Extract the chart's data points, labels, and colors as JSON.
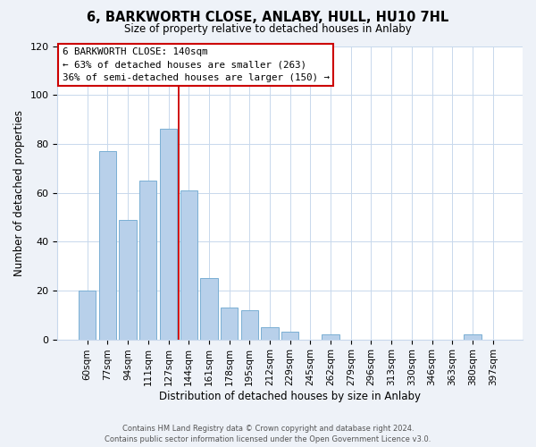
{
  "title": "6, BARKWORTH CLOSE, ANLABY, HULL, HU10 7HL",
  "subtitle": "Size of property relative to detached houses in Anlaby",
  "xlabel": "Distribution of detached houses by size in Anlaby",
  "ylabel": "Number of detached properties",
  "footer_line1": "Contains HM Land Registry data © Crown copyright and database right 2024.",
  "footer_line2": "Contains public sector information licensed under the Open Government Licence v3.0.",
  "bar_labels": [
    "60sqm",
    "77sqm",
    "94sqm",
    "111sqm",
    "127sqm",
    "144sqm",
    "161sqm",
    "178sqm",
    "195sqm",
    "212sqm",
    "229sqm",
    "245sqm",
    "262sqm",
    "279sqm",
    "296sqm",
    "313sqm",
    "330sqm",
    "346sqm",
    "363sqm",
    "380sqm",
    "397sqm"
  ],
  "bar_values": [
    20,
    77,
    49,
    65,
    86,
    61,
    25,
    13,
    12,
    5,
    3,
    0,
    2,
    0,
    0,
    0,
    0,
    0,
    0,
    2,
    0
  ],
  "bar_color": "#b8d0ea",
  "bar_edge_color": "#7aafd4",
  "property_line_color": "#cc0000",
  "annotation_title": "6 BARKWORTH CLOSE: 140sqm",
  "annotation_line1": "← 63% of detached houses are smaller (263)",
  "annotation_line2": "36% of semi-detached houses are larger (150) →",
  "annotation_box_edge_color": "#cc0000",
  "ylim": [
    0,
    120
  ],
  "yticks": [
    0,
    20,
    40,
    60,
    80,
    100,
    120
  ],
  "background_color": "#eef2f8",
  "plot_bg_color": "#ffffff",
  "grid_color": "#c8d8ec"
}
